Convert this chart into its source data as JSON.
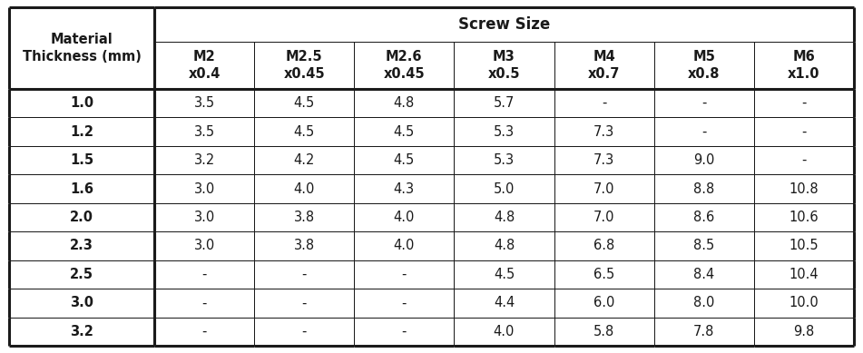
{
  "title": "Screw Size",
  "col_headers": [
    "M2\nx0.4",
    "M2.5\nx0.45",
    "M2.6\nx0.45",
    "M3\nx0.5",
    "M4\nx0.7",
    "M5\nx0.8",
    "M6\nx1.0"
  ],
  "row_header_label": "Material\nThickness (mm)",
  "row_labels": [
    "1.0",
    "1.2",
    "1.5",
    "1.6",
    "2.0",
    "2.3",
    "2.5",
    "3.0",
    "3.2"
  ],
  "table_data": [
    [
      "3.5",
      "4.5",
      "4.8",
      "5.7",
      "-",
      "-",
      "-"
    ],
    [
      "3.5",
      "4.5",
      "4.5",
      "5.3",
      "7.3",
      "-",
      "-"
    ],
    [
      "3.2",
      "4.2",
      "4.5",
      "5.3",
      "7.3",
      "9.0",
      "-"
    ],
    [
      "3.0",
      "4.0",
      "4.3",
      "5.0",
      "7.0",
      "8.8",
      "10.8"
    ],
    [
      "3.0",
      "3.8",
      "4.0",
      "4.8",
      "7.0",
      "8.6",
      "10.6"
    ],
    [
      "3.0",
      "3.8",
      "4.0",
      "4.8",
      "6.8",
      "8.5",
      "10.5"
    ],
    [
      "-",
      "-",
      "-",
      "4.5",
      "6.5",
      "8.4",
      "10.4"
    ],
    [
      "-",
      "-",
      "-",
      "4.4",
      "6.0",
      "8.0",
      "10.0"
    ],
    [
      "-",
      "-",
      "-",
      "4.0",
      "5.8",
      "7.8",
      "9.8"
    ]
  ],
  "bg_color": "#ffffff",
  "border_color": "#1a1a1a",
  "text_color": "#1a1a1a",
  "title_fontsize": 12,
  "header_fontsize": 10.5,
  "data_fontsize": 10.5,
  "thick_lw": 2.2,
  "thin_lw": 0.7,
  "fig_width": 9.51,
  "fig_height": 3.89,
  "dpi": 100
}
